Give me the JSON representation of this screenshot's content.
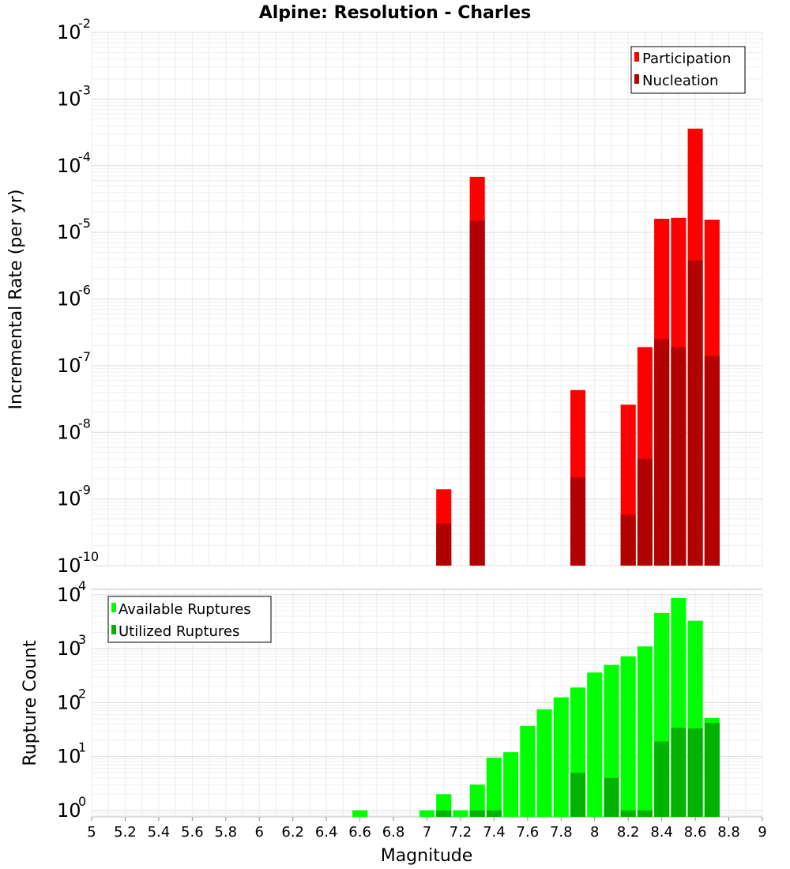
{
  "chart_data": [
    {
      "type": "bar",
      "title": "Alpine: Resolution - Charles",
      "ylabel": "Incremental Rate (per yr)",
      "yscale": "log",
      "ylim_exp": [
        -10,
        -2
      ],
      "y_ticks": [
        {
          "base": "10",
          "exp": "-2"
        },
        {
          "base": "10",
          "exp": "-3"
        },
        {
          "base": "10",
          "exp": "-4"
        },
        {
          "base": "10",
          "exp": "-5"
        },
        {
          "base": "10",
          "exp": "-6"
        },
        {
          "base": "10",
          "exp": "-7"
        },
        {
          "base": "10",
          "exp": "-8"
        },
        {
          "base": "10",
          "exp": "-9"
        },
        {
          "base": "10",
          "exp": "-10"
        }
      ],
      "legend_position": "top-right",
      "legend_items": [
        {
          "label": "Participation",
          "color": "#ff0000"
        },
        {
          "label": "Nucleation",
          "color": "#b30000"
        }
      ],
      "series": [
        {
          "name": "Participation",
          "color": "#ff0000",
          "points": [
            {
              "x": 7.1,
              "y": 1.4e-09
            },
            {
              "x": 7.3,
              "y": 6.8e-05
            },
            {
              "x": 7.9,
              "y": 4.3e-08
            },
            {
              "x": 8.2,
              "y": 2.6e-08
            },
            {
              "x": 8.3,
              "y": 1.9e-07
            },
            {
              "x": 8.4,
              "y": 1.6e-05
            },
            {
              "x": 8.5,
              "y": 1.65e-05
            },
            {
              "x": 8.6,
              "y": 0.00036
            },
            {
              "x": 8.7,
              "y": 1.55e-05
            }
          ]
        },
        {
          "name": "Nucleation",
          "color": "#b30000",
          "points": [
            {
              "x": 7.1,
              "y": 4.3e-10
            },
            {
              "x": 7.3,
              "y": 1.5e-05
            },
            {
              "x": 7.9,
              "y": 2.1e-09
            },
            {
              "x": 8.2,
              "y": 5.8e-10
            },
            {
              "x": 8.3,
              "y": 4e-09
            },
            {
              "x": 8.4,
              "y": 2.5e-07
            },
            {
              "x": 8.5,
              "y": 1.9e-07
            },
            {
              "x": 8.6,
              "y": 3.8e-06
            },
            {
              "x": 8.7,
              "y": 1.4e-07
            }
          ]
        }
      ]
    },
    {
      "type": "bar",
      "ylabel": "Rupture Count",
      "xlabel": "Magnitude",
      "yscale": "log",
      "ylim_exp": [
        -0.12,
        4.1
      ],
      "xlim": [
        5,
        9
      ],
      "x_ticks": [
        "5",
        "5.2",
        "5.4",
        "5.6",
        "5.8",
        "6",
        "6.2",
        "6.4",
        "6.6",
        "6.8",
        "7",
        "7.2",
        "7.4",
        "7.6",
        "7.8",
        "8",
        "8.2",
        "8.4",
        "8.6",
        "8.8",
        "9"
      ],
      "y_ticks": [
        {
          "base": "10",
          "exp": "4"
        },
        {
          "base": "10",
          "exp": "3"
        },
        {
          "base": "10",
          "exp": "2"
        },
        {
          "base": "10",
          "exp": "1"
        },
        {
          "base": "10",
          "exp": "0"
        }
      ],
      "legend_position": "top-left",
      "legend_items": [
        {
          "label": "Available Ruptures",
          "color": "#00ff00"
        },
        {
          "label": "Utilized Ruptures",
          "color": "#00b300"
        }
      ],
      "series": [
        {
          "name": "Available Ruptures",
          "color": "#00ff00",
          "points": [
            {
              "x": 6.6,
              "y": 1
            },
            {
              "x": 7.0,
              "y": 1
            },
            {
              "x": 7.1,
              "y": 2
            },
            {
              "x": 7.2,
              "y": 1
            },
            {
              "x": 7.3,
              "y": 3
            },
            {
              "x": 7.4,
              "y": 9.5
            },
            {
              "x": 7.5,
              "y": 12
            },
            {
              "x": 7.6,
              "y": 37
            },
            {
              "x": 7.7,
              "y": 75
            },
            {
              "x": 7.8,
              "y": 125
            },
            {
              "x": 7.9,
              "y": 190
            },
            {
              "x": 8.0,
              "y": 360
            },
            {
              "x": 8.1,
              "y": 500
            },
            {
              "x": 8.2,
              "y": 720
            },
            {
              "x": 8.3,
              "y": 1100
            },
            {
              "x": 8.4,
              "y": 4600
            },
            {
              "x": 8.5,
              "y": 8700
            },
            {
              "x": 8.6,
              "y": 3300
            },
            {
              "x": 8.7,
              "y": 52
            }
          ]
        },
        {
          "name": "Utilized Ruptures",
          "color": "#00b300",
          "points": [
            {
              "x": 7.1,
              "y": 1
            },
            {
              "x": 7.3,
              "y": 1
            },
            {
              "x": 7.4,
              "y": 1
            },
            {
              "x": 7.9,
              "y": 5
            },
            {
              "x": 8.1,
              "y": 4
            },
            {
              "x": 8.2,
              "y": 1
            },
            {
              "x": 8.3,
              "y": 1
            },
            {
              "x": 8.4,
              "y": 19
            },
            {
              "x": 8.5,
              "y": 34
            },
            {
              "x": 8.6,
              "y": 33
            },
            {
              "x": 8.7,
              "y": 42
            }
          ]
        }
      ]
    }
  ]
}
